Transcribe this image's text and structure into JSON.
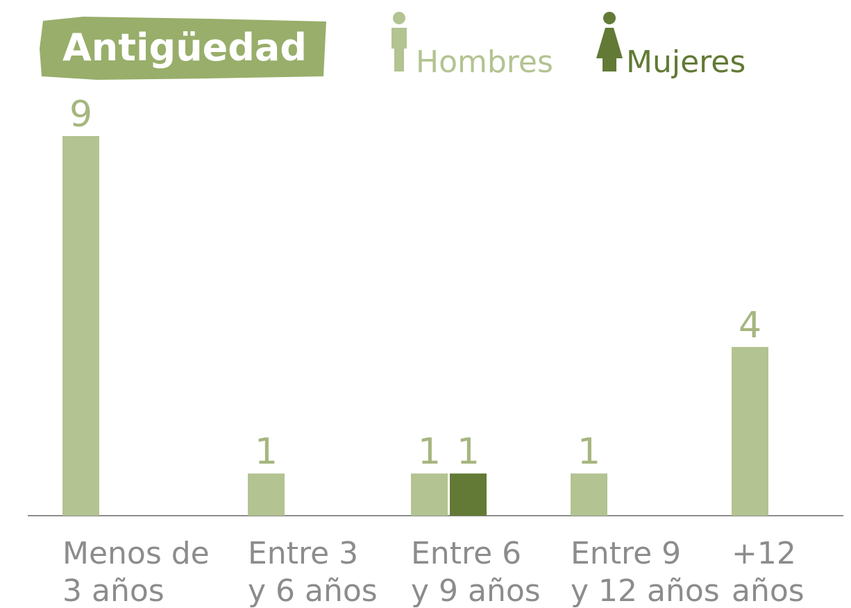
{
  "chart_data": {
    "type": "bar",
    "title": "Antigüedad",
    "categories": [
      [
        "Menos de",
        "3 años"
      ],
      [
        "Entre 3",
        "y 6 años"
      ],
      [
        "Entre 6",
        "y 9 años"
      ],
      [
        "Entre 9",
        "y 12 años"
      ],
      [
        "+12",
        "años"
      ]
    ],
    "series": [
      {
        "name": "Hombres",
        "color": "#b3c391",
        "values": [
          9,
          1,
          1,
          1,
          4
        ]
      },
      {
        "name": "Mujeres",
        "color": "#627a35",
        "values": [
          null,
          null,
          1,
          null,
          null
        ]
      }
    ],
    "ylim": [
      0,
      9
    ]
  }
}
